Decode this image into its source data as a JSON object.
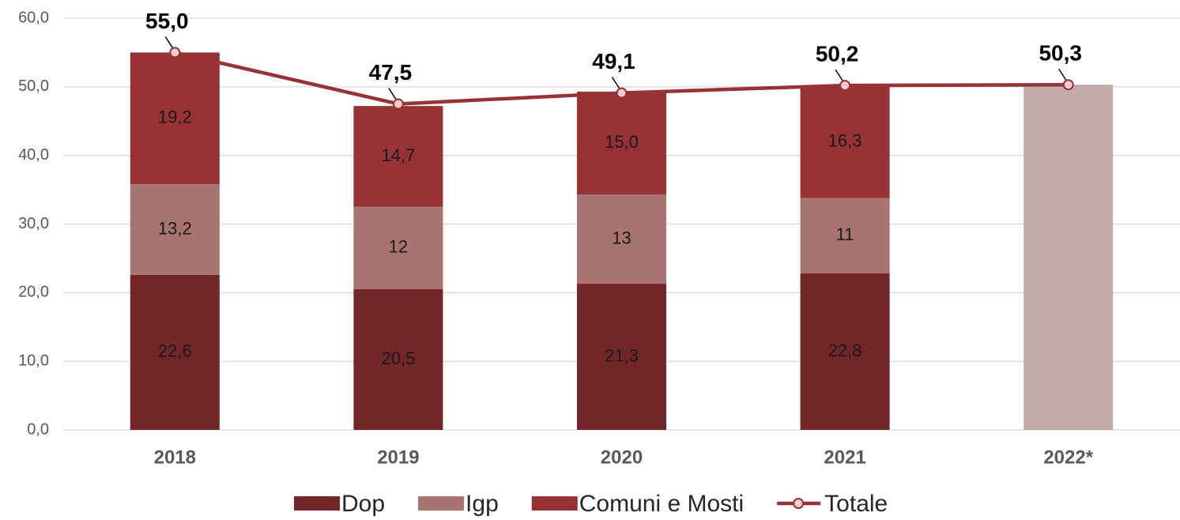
{
  "chart_data": {
    "type": "bar",
    "categories": [
      "2018",
      "2019",
      "2020",
      "2021",
      "2022*"
    ],
    "ylim": [
      0,
      60
    ],
    "yticks": [
      {
        "value": 0,
        "label": "0,0"
      },
      {
        "value": 10,
        "label": "10,0"
      },
      {
        "value": 20,
        "label": "20,0"
      },
      {
        "value": 30,
        "label": "30,0"
      },
      {
        "value": 40,
        "label": "40,0"
      },
      {
        "value": 50,
        "label": "50,0"
      },
      {
        "value": 60,
        "label": "60,0"
      }
    ],
    "grid": true,
    "legend": "bottom",
    "estimate_bar_color": "#c5aaaa",
    "series": [
      {
        "name": "Dop",
        "type": "bar",
        "color": "#722628",
        "values": [
          22.6,
          20.5,
          21.3,
          22.8,
          null
        ],
        "value_labels": [
          "22,6",
          "20,5",
          "21,3",
          "22,8",
          null
        ]
      },
      {
        "name": "Igp",
        "type": "bar",
        "color": "#a97370",
        "values": [
          13.2,
          12,
          13,
          11,
          null
        ],
        "value_labels": [
          "13,2",
          "12",
          "13",
          "11",
          null
        ]
      },
      {
        "name": "Comuni e Mosti",
        "type": "bar",
        "color": "#973235",
        "values": [
          19.2,
          14.7,
          15.0,
          16.3,
          null
        ],
        "value_labels": [
          "19,2",
          "14,7",
          "15,0",
          "16,3",
          null
        ]
      },
      {
        "name": "Totale",
        "type": "line",
        "color": "#973235",
        "values": [
          55.0,
          47.5,
          49.1,
          50.2,
          50.3
        ],
        "value_labels": [
          "55,0",
          "47,5",
          "49,1",
          "50,2",
          "50,3"
        ]
      }
    ]
  }
}
